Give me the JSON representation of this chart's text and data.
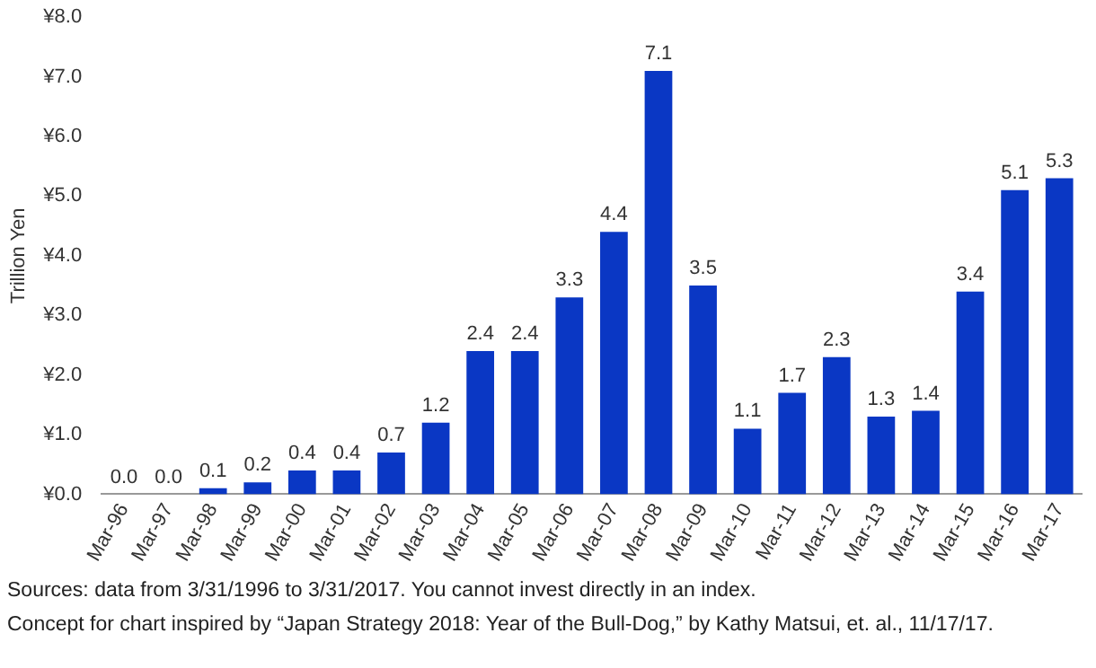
{
  "chart_data": {
    "type": "bar",
    "ylabel": "Trillion Yen",
    "categories": [
      "Mar-96",
      "Mar-97",
      "Mar-98",
      "Mar-99",
      "Mar-00",
      "Mar-01",
      "Mar-02",
      "Mar-03",
      "Mar-04",
      "Mar-05",
      "Mar-06",
      "Mar-07",
      "Mar-08",
      "Mar-09",
      "Mar-10",
      "Mar-11",
      "Mar-12",
      "Mar-13",
      "Mar-14",
      "Mar-15",
      "Mar-16",
      "Mar-17"
    ],
    "values": [
      0.0,
      0.0,
      0.1,
      0.2,
      0.4,
      0.4,
      0.7,
      1.2,
      2.4,
      2.4,
      3.3,
      4.4,
      7.1,
      3.5,
      1.1,
      1.7,
      2.3,
      1.3,
      1.4,
      3.4,
      5.1,
      5.3
    ],
    "value_labels": [
      "0.0",
      "0.0",
      "0.1",
      "0.2",
      "0.4",
      "0.4",
      "0.7",
      "1.2",
      "2.4",
      "2.4",
      "3.3",
      "4.4",
      "7.1",
      "3.5",
      "1.1",
      "1.7",
      "2.3",
      "1.3",
      "1.4",
      "3.4",
      "5.1",
      "5.3"
    ],
    "color": "#0a37c4",
    "ylim": [
      0,
      8
    ],
    "yticks": [
      {
        "value": 0,
        "label": "¥0.0"
      },
      {
        "value": 1,
        "label": "¥1.0"
      },
      {
        "value": 2,
        "label": "¥2.0"
      },
      {
        "value": 3,
        "label": "¥3.0"
      },
      {
        "value": 4,
        "label": "¥4.0"
      },
      {
        "value": 5,
        "label": "¥5.0"
      },
      {
        "value": 6,
        "label": "¥6.0"
      },
      {
        "value": 7,
        "label": "¥7.0"
      },
      {
        "value": 8,
        "label": "¥8.0"
      }
    ],
    "grid": false,
    "legend": false,
    "annotations": [
      "Sources: data from 3/31/1996 to 3/31/2017. You cannot invest directly in an index.",
      "Concept for chart inspired by “Japan Strategy 2018: Year of the Bull-Dog,” by Kathy Matsui, et. al., 11/17/17."
    ]
  }
}
